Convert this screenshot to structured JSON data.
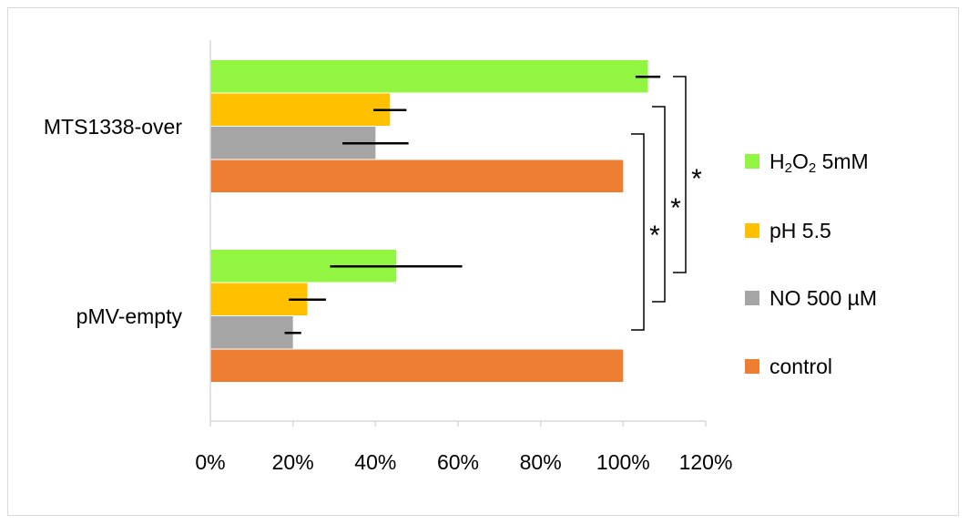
{
  "chart_data": {
    "type": "bar",
    "orientation": "horizontal",
    "categories": [
      "MTS1338-over",
      "pMV-empty"
    ],
    "series": [
      {
        "name": "H2O2 5mM",
        "values": [
          106,
          45
        ],
        "errors": [
          3,
          16
        ],
        "color": "#92f542"
      },
      {
        "name": "pH 5.5",
        "values": [
          43.5,
          23.5
        ],
        "errors": [
          4,
          4.5
        ],
        "color": "#ffc000"
      },
      {
        "name": "NO 500 µM",
        "values": [
          40,
          20
        ],
        "errors": [
          8,
          2
        ],
        "color": "#a5a5a5"
      },
      {
        "name": "control",
        "values": [
          100,
          100
        ],
        "errors": [
          0,
          0
        ],
        "color": "#ed7d31"
      }
    ],
    "legend_labels": [
      {
        "key": "h2o2",
        "main": "H",
        "sub1": "2",
        "mid": "O",
        "sub2": "2",
        "tail": "5mM",
        "color": "#92f542"
      },
      {
        "key": "ph",
        "text": "pH 5.5",
        "color": "#ffc000"
      },
      {
        "key": "no",
        "text": "NO 500 µM",
        "color": "#a5a5a5"
      },
      {
        "key": "control",
        "text": "control",
        "color": "#ed7d31"
      }
    ],
    "xlim": [
      0,
      120
    ],
    "xticks": [
      "0%",
      "20%",
      "40%",
      "60%",
      "80%",
      "100%",
      "120%"
    ],
    "xtick_values": [
      0,
      20,
      40,
      60,
      80,
      100,
      120
    ],
    "grid": false,
    "legend": "right",
    "significance": [
      "*",
      "*",
      "*"
    ]
  }
}
